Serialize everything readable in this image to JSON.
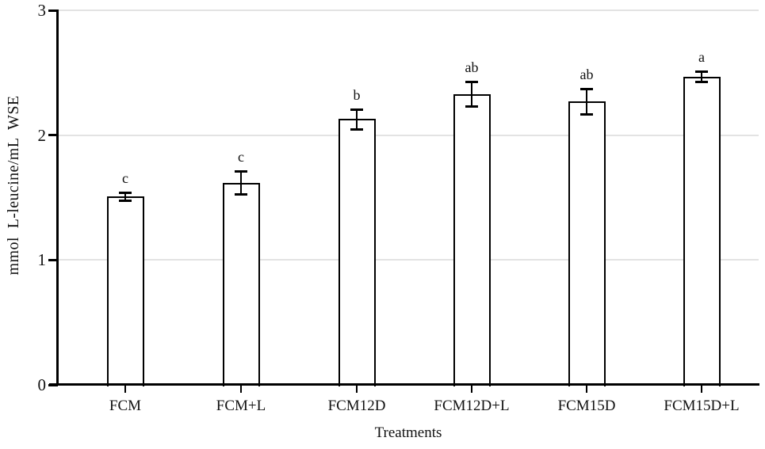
{
  "chart_data": {
    "type": "bar",
    "title": "",
    "xlabel": "Treatments",
    "ylabel": "mmol  L-leucine/mL  WSE",
    "categories": [
      "FCM",
      "FCM+L",
      "FCM12D",
      "FCM12D+L",
      "FCM15D",
      "FCM15D+L"
    ],
    "values": [
      1.51,
      1.62,
      2.13,
      2.33,
      2.27,
      2.47
    ],
    "error_bars": [
      0.03,
      0.09,
      0.08,
      0.1,
      0.1,
      0.04
    ],
    "significance_letters": [
      "c",
      "c",
      "b",
      "ab",
      "ab",
      "a"
    ],
    "ylim": [
      0,
      3
    ],
    "yticks": [
      0,
      1,
      2,
      3
    ],
    "grid": "horizontal-light",
    "legend": "none",
    "colors": {
      "bar_fill": "#ffffff",
      "bar_border": "#000000",
      "gridline": "#e3e3e3",
      "axis": "#000000",
      "text": "#111111"
    }
  }
}
